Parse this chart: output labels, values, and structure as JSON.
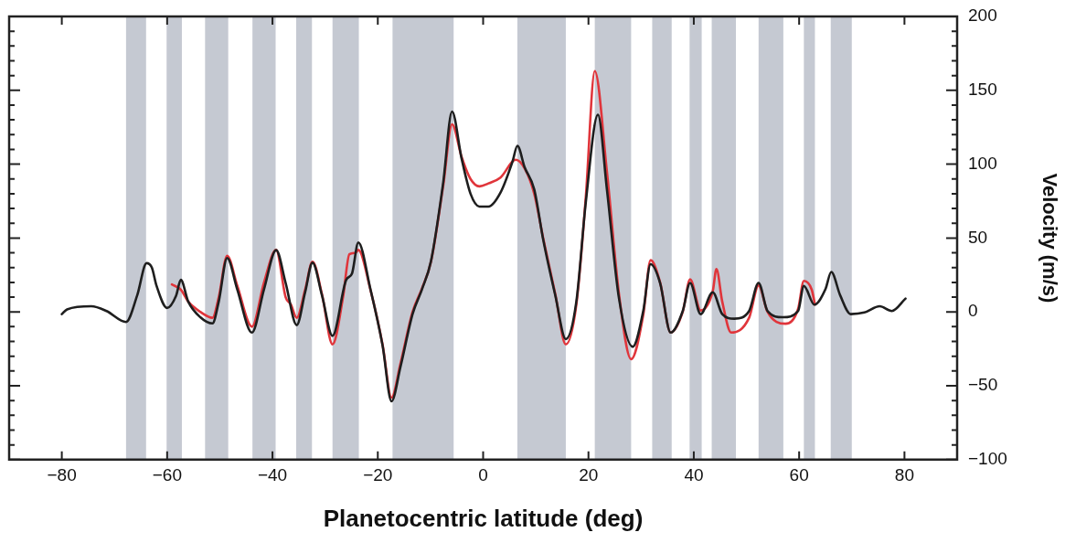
{
  "chart_data": {
    "type": "line",
    "xlabel": "Planetocentric latitude (deg)",
    "ylabel": "Velocity (m/s)",
    "xlim": [
      -90,
      90
    ],
    "xticks": [
      -80,
      -60,
      -40,
      -20,
      0,
      20,
      40,
      60,
      80
    ],
    "ylim": [
      -100,
      200
    ],
    "yticks": [
      -100,
      {
        "value": -90,
        "label": null
      },
      {
        "value": -80,
        "label": null
      },
      {
        "value": -70,
        "label": null
      },
      {
        "value": -60,
        "label": null
      },
      -50,
      {
        "value": -40,
        "label": null
      },
      {
        "value": -30,
        "label": null
      },
      {
        "value": -20,
        "label": null
      },
      {
        "value": -10,
        "label": null
      },
      0,
      {
        "value": 10,
        "label": null
      },
      {
        "value": 20,
        "label": null
      },
      {
        "value": 30,
        "label": null
      },
      {
        "value": 40,
        "label": null
      },
      50,
      {
        "value": 60,
        "label": null
      },
      {
        "value": 70,
        "label": null
      },
      {
        "value": 80,
        "label": null
      },
      {
        "value": 90,
        "label": null
      },
      100,
      {
        "value": 110,
        "label": null
      },
      {
        "value": 120,
        "label": null
      },
      {
        "value": 130,
        "label": null
      },
      {
        "value": 140,
        "label": null
      },
      150,
      {
        "value": 160,
        "label": null
      },
      {
        "value": 170,
        "label": null
      },
      {
        "value": 180,
        "label": null
      },
      {
        "value": 190,
        "label": null
      },
      200
    ],
    "grid": false,
    "legend": false,
    "marker": "none",
    "line_style": "solid",
    "bands": [
      {
        "axis": "x",
        "from": -67.8,
        "to": -64.0,
        "color": "#c5c9d2"
      },
      {
        "axis": "x",
        "from": -60.1,
        "to": -57.2,
        "color": "#c5c9d2"
      },
      {
        "axis": "x",
        "from": -52.8,
        "to": -48.4,
        "color": "#c5c9d2"
      },
      {
        "axis": "x",
        "from": -43.8,
        "to": -39.4,
        "color": "#c5c9d2"
      },
      {
        "axis": "x",
        "from": -35.5,
        "to": -32.5,
        "color": "#c5c9d2"
      },
      {
        "axis": "x",
        "from": -28.6,
        "to": -23.6,
        "color": "#c5c9d2"
      },
      {
        "axis": "x",
        "from": -17.2,
        "to": -5.6,
        "color": "#c5c9d2"
      },
      {
        "axis": "x",
        "from": 6.5,
        "to": 15.7,
        "color": "#c5c9d2"
      },
      {
        "axis": "x",
        "from": 21.2,
        "to": 28.1,
        "color": "#c5c9d2"
      },
      {
        "axis": "x",
        "from": 32.1,
        "to": 35.8,
        "color": "#c5c9d2"
      },
      {
        "axis": "x",
        "from": 39.2,
        "to": 41.5,
        "color": "#c5c9d2"
      },
      {
        "axis": "x",
        "from": 43.4,
        "to": 48.0,
        "color": "#c5c9d2"
      },
      {
        "axis": "x",
        "from": 52.3,
        "to": 57.0,
        "color": "#c5c9d2"
      },
      {
        "axis": "x",
        "from": 60.9,
        "to": 63.0,
        "color": "#c5c9d2"
      },
      {
        "axis": "x",
        "from": 66.0,
        "to": 70.0,
        "color": "#c5c9d2"
      }
    ],
    "series": [
      {
        "color": "#e0353b",
        "x": [
          -59.1,
          -57.4,
          -56,
          -53.7,
          -51.4,
          -50.2,
          -48.6,
          -46.7,
          -43.9,
          -41.6,
          -39.3,
          -37.5,
          -36.5,
          -35.4,
          -33.8,
          -32.4,
          -30.6,
          -28.6,
          -26.6,
          -25.4,
          -24.2,
          -23.7,
          -21.4,
          -19.1,
          -17.4,
          -15.7,
          -13.4,
          -11.6,
          -9.9,
          -7.6,
          -5.9,
          -4.1,
          -2.4,
          -0.7,
          1,
          3.3,
          6.2,
          7.9,
          9.7,
          11.4,
          13.7,
          15.7,
          17.7,
          19.5,
          21.2,
          23.5,
          25.8,
          28.1,
          30.4,
          31.8,
          33.6,
          35.6,
          37.9,
          39.3,
          41.3,
          43.6,
          44.3,
          45.4,
          47.1,
          50.5,
          52.3,
          54,
          57.4,
          59.8,
          60.9,
          62.4,
          63
        ],
        "values": [
          18.6,
          15,
          7,
          0,
          -4,
          10,
          38,
          18,
          -10,
          20,
          42,
          10,
          5,
          -4,
          15,
          34,
          12,
          -22,
          10,
          39,
          40,
          42,
          15,
          -22,
          -58,
          -35,
          0,
          16,
          34,
          85,
          127,
          105,
          90,
          85,
          87,
          91,
          103,
          97,
          80,
          50,
          12,
          -22,
          5,
          78,
          163,
          95,
          12,
          -32,
          -2,
          35,
          20,
          -14,
          0,
          22,
          1,
          14,
          29,
          7,
          -14,
          -4,
          18,
          0,
          -8,
          2,
          21,
          15,
          5
        ]
      },
      {
        "color": "#1e1e1e",
        "x": [
          -80,
          -79,
          -74.4,
          -71.5,
          -67.8,
          -65.7,
          -63.9,
          -62.9,
          -62,
          -60,
          -58.3,
          -57.4,
          -56,
          -53.7,
          -51.4,
          -50.2,
          -48.6,
          -46.7,
          -43.9,
          -41.6,
          -39.3,
          -37.5,
          -35.4,
          -33.8,
          -32.4,
          -30.6,
          -28.6,
          -26,
          -24.9,
          -23.7,
          -21.4,
          -19.1,
          -17.4,
          -15.7,
          -13.4,
          -11.6,
          -9.9,
          -7.6,
          -5.9,
          -4.1,
          -2.4,
          -0.7,
          1,
          3.3,
          5.6,
          6.5,
          7.9,
          9.7,
          11.4,
          13.7,
          15.7,
          17.7,
          19.5,
          21.8,
          23.5,
          25.8,
          28.4,
          30.4,
          31.8,
          33.6,
          35.6,
          37.9,
          39.3,
          41.3,
          43.6,
          45.4,
          47.7,
          50.5,
          52.3,
          54,
          56.9,
          59.8,
          60.9,
          62.9,
          65,
          66.1,
          67.8,
          69.8,
          72.4,
          75.3,
          77.6,
          80.2
        ],
        "values": [
          -1.5,
          1.7,
          3.8,
          0.6,
          -6.8,
          11,
          33,
          30,
          17.5,
          2.7,
          11,
          21.7,
          7,
          -3.6,
          -7.8,
          7,
          36.5,
          15.4,
          -14,
          15.4,
          41.8,
          19.6,
          -8.9,
          13.3,
          33.3,
          11.2,
          -16.2,
          21.7,
          26,
          47,
          15.4,
          -22.6,
          -60.5,
          -37.3,
          -1.5,
          15.4,
          34.4,
          87,
          135.6,
          104,
          80,
          71.3,
          71.3,
          80.8,
          102,
          112.4,
          97.7,
          83,
          49,
          11.2,
          -18.4,
          7,
          74.5,
          133.5,
          83,
          9,
          -23.6,
          0.6,
          32.3,
          19.6,
          -14,
          0.6,
          19.6,
          -1.5,
          13.3,
          -1.5,
          -4.6,
          0.6,
          19.6,
          0.6,
          -3.6,
          0.6,
          17.5,
          4.9,
          15.4,
          27,
          11.2,
          -1.5,
          -0.4,
          3.8,
          0.6,
          9
        ]
      }
    ]
  }
}
